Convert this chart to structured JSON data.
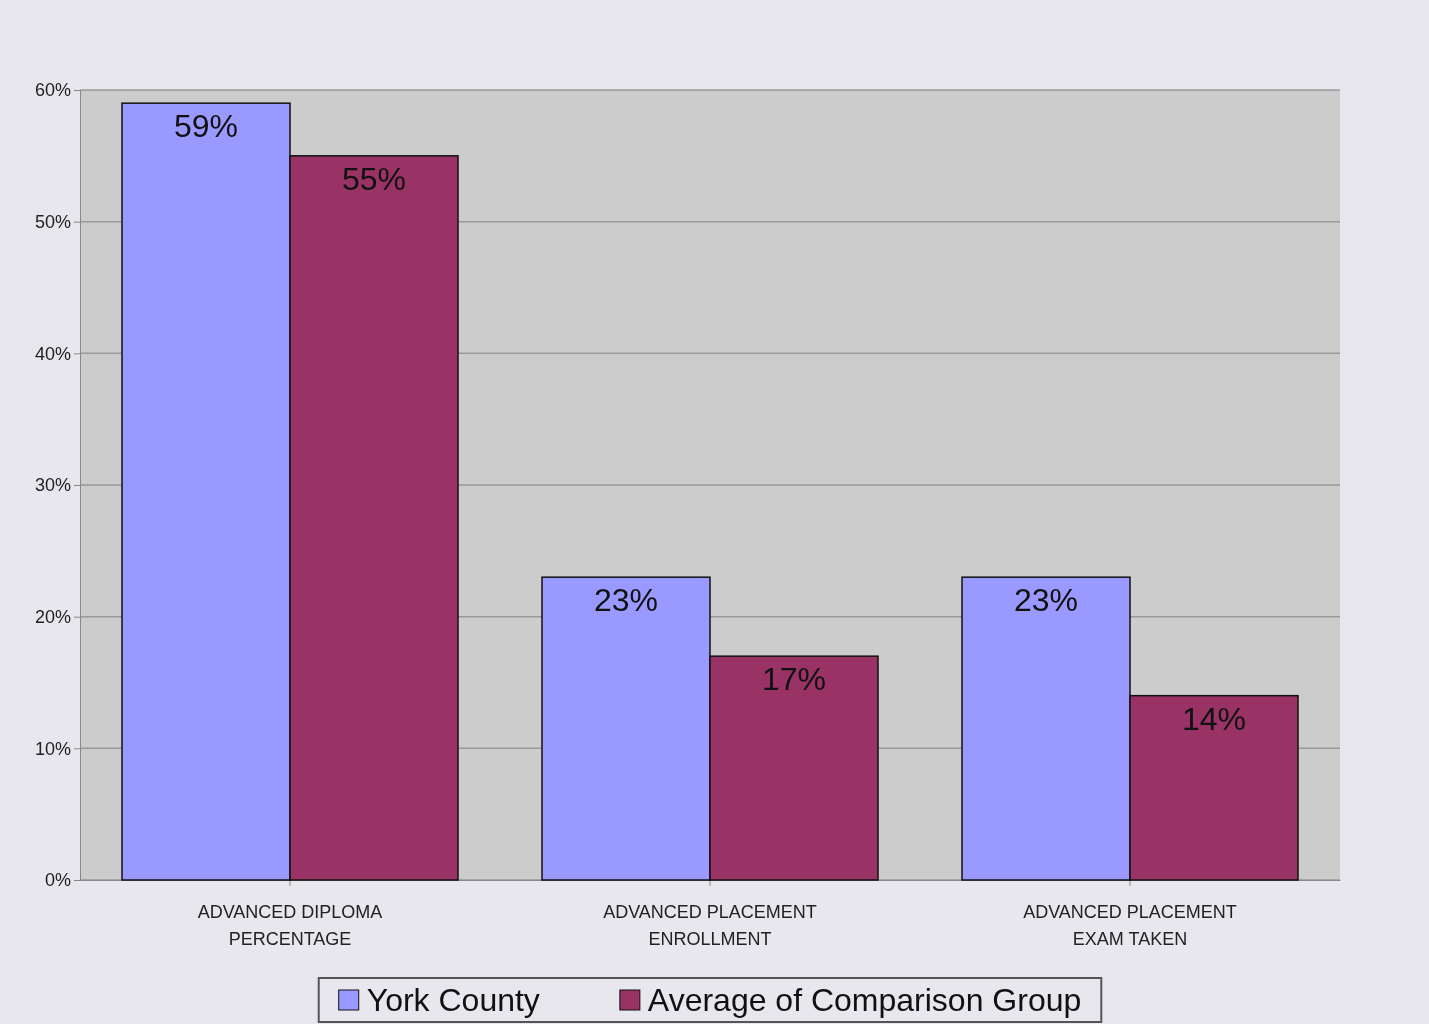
{
  "chart_data": {
    "type": "bar",
    "categories": [
      "ADVANCED DIPLOMA PERCENTAGE",
      "ADVANCED PLACEMENT ENROLLMENT",
      "ADVANCED PLACEMENT EXAM TAKEN"
    ],
    "series": [
      {
        "name": "York County",
        "color": "#9999ff",
        "values": [
          59,
          23,
          23
        ],
        "value_labels": [
          "59%",
          "23%",
          "23%"
        ]
      },
      {
        "name": "Average of Comparison Group",
        "color": "#993366",
        "values": [
          55,
          17,
          14
        ],
        "value_labels": [
          "55%",
          "17%",
          "14%"
        ]
      }
    ],
    "ylim": [
      0,
      60
    ],
    "yticks": [
      {
        "value": 0,
        "label": "0%"
      },
      {
        "value": 10,
        "label": "10%"
      },
      {
        "value": 20,
        "label": "20%"
      },
      {
        "value": 30,
        "label": "30%"
      },
      {
        "value": 40,
        "label": "40%"
      },
      {
        "value": 50,
        "label": "50%"
      },
      {
        "value": 60,
        "label": "60%"
      }
    ],
    "grid": "y",
    "legend": "bottom"
  }
}
